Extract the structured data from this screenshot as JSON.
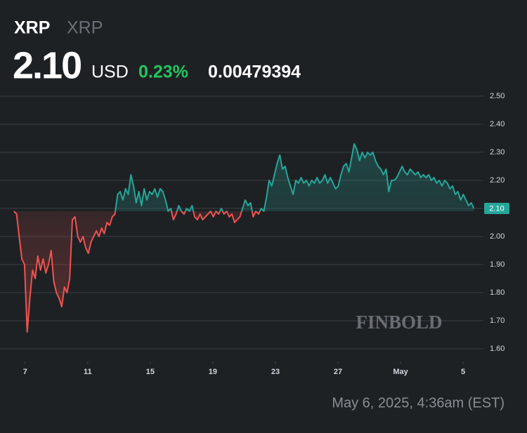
{
  "header": {
    "symbol": "XRP",
    "pair": "XRP",
    "price": "2.10",
    "currency": "USD",
    "change_pct": "0.23%",
    "change_abs": "0.00479394"
  },
  "chart_data": {
    "type": "line",
    "x": [
      6.28,
      6.45,
      6.62,
      6.79,
      6.96,
      7.13,
      7.3,
      7.47,
      7.64,
      7.81,
      7.98,
      8.15,
      8.32,
      8.49,
      8.66,
      8.83,
      9.0,
      9.17,
      9.34,
      9.51,
      9.68,
      9.85,
      10.02,
      10.19,
      10.36,
      10.53,
      10.7,
      10.87,
      11.04,
      11.21,
      11.38,
      11.55,
      11.72,
      11.89,
      12.06,
      12.23,
      12.4,
      12.57,
      12.74,
      12.91,
      13.08,
      13.25,
      13.42,
      13.59,
      13.76,
      13.93,
      14.1,
      14.27,
      14.44,
      14.61,
      14.78,
      14.95,
      15.12,
      15.29,
      15.46,
      15.63,
      15.8,
      15.97,
      16.14,
      16.31,
      16.48,
      16.65,
      16.82,
      16.99,
      17.16,
      17.33,
      17.5,
      17.67,
      17.84,
      18.01,
      18.18,
      18.35,
      18.52,
      18.69,
      18.86,
      19.03,
      19.2,
      19.37,
      19.54,
      19.71,
      19.88,
      20.05,
      20.22,
      20.39,
      20.56,
      20.73,
      20.9,
      21.07,
      21.24,
      21.41,
      21.58,
      21.75,
      21.92,
      22.09,
      22.26,
      22.43,
      22.6,
      22.77,
      22.94,
      23.11,
      23.28,
      23.45,
      23.62,
      23.79,
      23.96,
      24.13,
      24.3,
      24.47,
      24.64,
      24.81,
      24.98,
      25.15,
      25.32,
      25.49,
      25.66,
      25.83,
      26.0,
      26.17,
      26.34,
      26.51,
      26.68,
      26.85,
      27.02,
      27.19,
      27.36,
      27.53,
      27.7,
      27.87,
      28.04,
      28.21,
      28.38,
      28.55,
      28.72,
      28.89,
      29.06,
      29.23,
      29.4,
      29.57,
      29.74,
      29.91,
      30.08,
      30.25,
      30.42,
      30.59,
      30.76,
      30.93,
      31.1,
      31.27,
      31.44,
      31.61,
      31.78,
      31.95,
      32.12,
      32.29,
      32.46,
      32.63,
      32.8,
      32.97,
      33.14,
      33.31,
      33.48,
      33.65,
      33.82,
      33.99,
      34.16,
      34.33,
      34.5,
      34.67,
      34.84,
      35.01,
      35.18,
      35.35,
      35.52,
      35.69
    ],
    "values": [
      2.09,
      2.08,
      2.0,
      1.92,
      1.9,
      1.66,
      1.78,
      1.88,
      1.85,
      1.93,
      1.88,
      1.92,
      1.87,
      1.9,
      1.95,
      1.84,
      1.8,
      1.78,
      1.75,
      1.82,
      1.8,
      1.85,
      2.06,
      2.07,
      2.0,
      1.98,
      2.0,
      1.96,
      1.94,
      1.98,
      2.0,
      2.02,
      2.0,
      2.03,
      2.01,
      2.05,
      2.04,
      2.07,
      2.08,
      2.15,
      2.16,
      2.13,
      2.17,
      2.15,
      2.22,
      2.18,
      2.12,
      2.16,
      2.11,
      2.17,
      2.13,
      2.16,
      2.15,
      2.17,
      2.14,
      2.17,
      2.16,
      2.13,
      2.09,
      2.1,
      2.06,
      2.08,
      2.11,
      2.09,
      2.08,
      2.1,
      2.09,
      2.11,
      2.07,
      2.06,
      2.08,
      2.06,
      2.07,
      2.08,
      2.09,
      2.07,
      2.09,
      2.08,
      2.1,
      2.08,
      2.09,
      2.07,
      2.08,
      2.05,
      2.06,
      2.07,
      2.1,
      2.13,
      2.11,
      2.12,
      2.07,
      2.09,
      2.08,
      2.1,
      2.09,
      2.14,
      2.2,
      2.18,
      2.22,
      2.26,
      2.29,
      2.24,
      2.25,
      2.21,
      2.18,
      2.15,
      2.2,
      2.19,
      2.21,
      2.19,
      2.2,
      2.18,
      2.2,
      2.19,
      2.21,
      2.19,
      2.2,
      2.22,
      2.19,
      2.21,
      2.19,
      2.17,
      2.18,
      2.22,
      2.25,
      2.26,
      2.23,
      2.28,
      2.33,
      2.31,
      2.27,
      2.3,
      2.28,
      2.3,
      2.29,
      2.3,
      2.27,
      2.25,
      2.24,
      2.22,
      2.24,
      2.16,
      2.2,
      2.2,
      2.21,
      2.23,
      2.25,
      2.23,
      2.22,
      2.24,
      2.23,
      2.22,
      2.23,
      2.21,
      2.22,
      2.21,
      2.22,
      2.2,
      2.21,
      2.19,
      2.2,
      2.18,
      2.2,
      2.19,
      2.17,
      2.18,
      2.15,
      2.16,
      2.13,
      2.15,
      2.13,
      2.11,
      2.12,
      2.1
    ],
    "up_color": "#26a69a",
    "down_color": "#ef5350",
    "last_label": "2.10",
    "xlim": [
      6.2,
      36.3
    ],
    "xticks": [
      7,
      11,
      15,
      19,
      23,
      27,
      {
        "value": 31,
        "label": "May"
      },
      {
        "value": 35,
        "label": "5"
      }
    ],
    "ylim": [
      1.57,
      2.53
    ],
    "yticks": [
      {
        "value": 1.6,
        "label": "1.60"
      },
      {
        "value": 1.7,
        "label": "1.70"
      },
      {
        "value": 1.8,
        "label": "1.80"
      },
      {
        "value": 1.9,
        "label": "1.90"
      },
      {
        "value": 2.0,
        "label": "2.00"
      },
      {
        "value": 2.1,
        "label": "2.10"
      },
      {
        "value": 2.2,
        "label": "2.20"
      },
      {
        "value": 2.3,
        "label": "2.30"
      },
      {
        "value": 2.4,
        "label": "2.40"
      },
      {
        "value": 2.5,
        "label": "2.50"
      }
    ],
    "grid": true,
    "watermark": "FINBOLD"
  },
  "timestamp": "May 6, 2025, 4:36am (EST)"
}
